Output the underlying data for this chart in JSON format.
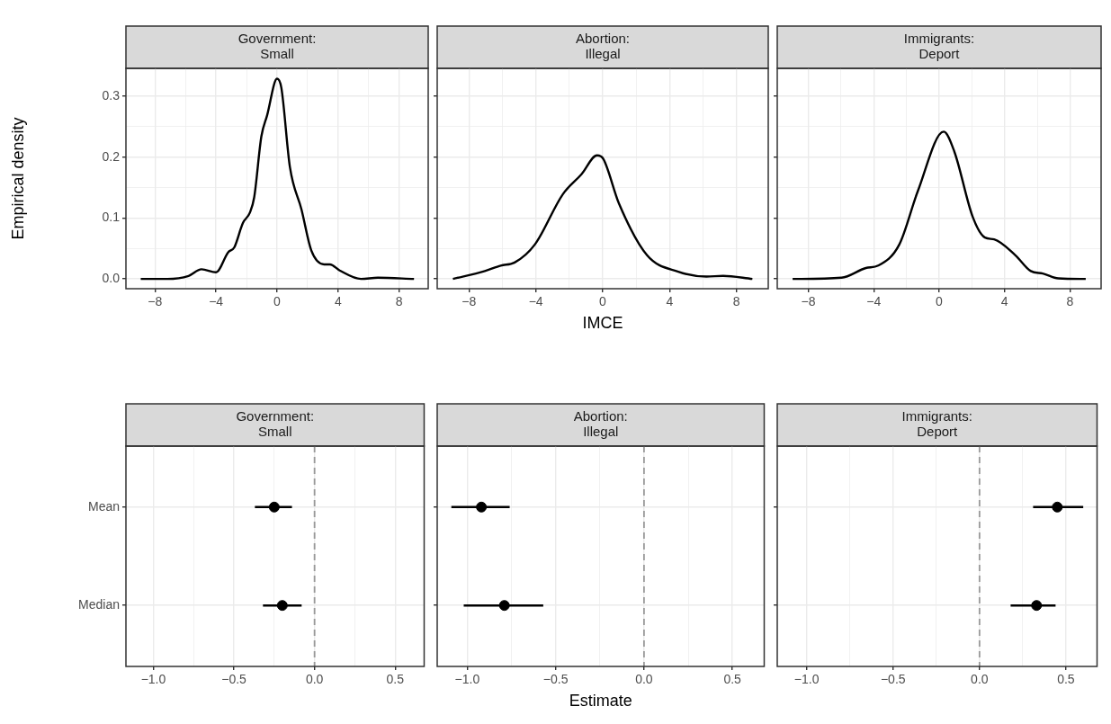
{
  "chart_data": [
    {
      "type": "line",
      "title": "Government:\nSmall",
      "ylabel": "Empirical density",
      "color": "#000000",
      "grid": true,
      "xlim": [
        -9.9,
        9.9
      ],
      "ylim": [
        -0.016,
        0.346
      ],
      "xticks": [
        {
          "value": -8,
          "label": "−8"
        },
        {
          "value": -6,
          "label": null
        },
        {
          "value": -4,
          "label": "−4"
        },
        {
          "value": -2,
          "label": null
        },
        0,
        {
          "value": 2,
          "label": null
        },
        4,
        {
          "value": 6,
          "label": null
        },
        8
      ],
      "yticks": [
        {
          "value": 0,
          "label": "0.0"
        },
        {
          "value": 0.05,
          "label": null
        },
        0.1,
        {
          "value": 0.15,
          "label": null
        },
        0.2,
        {
          "value": 0.25,
          "label": null
        },
        0.3
      ],
      "x": [
        -8.93,
        -7.2,
        -5.8,
        -4.95,
        -4.0,
        -3.2,
        -2.8,
        -2.24,
        -1.78,
        -1.5,
        -1.03,
        -0.65,
        0,
        0.28,
        0.84,
        1.6,
        2.24,
        3.08,
        3.46,
        4.1,
        5.5,
        6.6,
        8.97
      ],
      "values": [
        0,
        0,
        0.005,
        0.016,
        0.011,
        0.044,
        0.052,
        0.092,
        0.109,
        0.134,
        0.234,
        0.269,
        0.329,
        0.314,
        0.184,
        0.114,
        0.047,
        0.024,
        0.024,
        0.014,
        0,
        0.002,
        0
      ]
    },
    {
      "type": "line",
      "title": "Abortion:\nIllegal",
      "xlabel": "IMCE",
      "tick_labels": "x",
      "color": "#000000",
      "grid": true,
      "xlim": [
        -9.9,
        9.9
      ],
      "ylim": [
        -0.016,
        0.346
      ],
      "xticks": [
        {
          "value": -8,
          "label": "−8"
        },
        {
          "value": -6,
          "label": null
        },
        {
          "value": -4,
          "label": "−4"
        },
        {
          "value": -2,
          "label": null
        },
        0,
        {
          "value": 2,
          "label": null
        },
        4,
        {
          "value": 6,
          "label": null
        },
        8
      ],
      "yticks": [
        0,
        {
          "value": 0.05,
          "label": null
        },
        0.1,
        {
          "value": 0.15,
          "label": null
        },
        0.2,
        {
          "value": 0.25,
          "label": null
        },
        0.3
      ],
      "x": [
        -8.96,
        -7.05,
        -6.1,
        -5.27,
        -4.05,
        -2.39,
        -1.27,
        -0.34,
        0.04,
        0.97,
        2.65,
        4.52,
        6.2,
        7.2,
        8.95
      ],
      "values": [
        0,
        0.013,
        0.022,
        0.027,
        0.057,
        0.139,
        0.172,
        0.203,
        0.197,
        0.124,
        0.039,
        0.012,
        0.004,
        0.005,
        0
      ]
    },
    {
      "type": "line",
      "title": "Immigrants:\nDeport",
      "tick_labels": "x",
      "color": "#000000",
      "grid": true,
      "xlim": [
        -9.9,
        9.9
      ],
      "ylim": [
        -0.016,
        0.346
      ],
      "xticks": [
        {
          "value": -8,
          "label": "−8"
        },
        {
          "value": -6,
          "label": null
        },
        {
          "value": -4,
          "label": "−4"
        },
        {
          "value": -2,
          "label": null
        },
        0,
        {
          "value": 2,
          "label": null
        },
        4,
        {
          "value": 6,
          "label": null
        },
        8
      ],
      "yticks": [
        0,
        {
          "value": 0.05,
          "label": null
        },
        0.1,
        {
          "value": 0.15,
          "label": null
        },
        0.2,
        {
          "value": 0.25,
          "label": null
        },
        0.3
      ],
      "x": [
        -8.96,
        -5.97,
        -4.48,
        -3.73,
        -2.43,
        -1.31,
        0.28,
        0.93,
        2.05,
        2.8,
        3.36,
        4.66,
        5.6,
        6.34,
        7.28,
        8.96
      ],
      "values": [
        0,
        0.002,
        0.018,
        0.022,
        0.057,
        0.144,
        0.242,
        0.209,
        0.102,
        0.068,
        0.065,
        0.039,
        0.013,
        0.009,
        0.001,
        0
      ]
    },
    {
      "type": "scatter",
      "orientation": "horizontal",
      "title": "Government:\nSmall",
      "marker": "circle",
      "color": "#000000",
      "grid": true,
      "categories": [
        "Mean",
        "Median"
      ],
      "values": [
        -0.25,
        -0.2
      ],
      "errors": [
        [
          -0.37,
          -0.14
        ],
        [
          -0.32,
          -0.08
        ]
      ],
      "xlim": [
        -1.17,
        0.68
      ],
      "xticks": [
        {
          "value": -1,
          "label": "−1.0"
        },
        {
          "value": -0.75,
          "label": null
        },
        {
          "value": -0.5,
          "label": "−0.5"
        },
        {
          "value": -0.25,
          "label": null
        },
        {
          "value": 0,
          "label": "0.0"
        },
        {
          "value": 0.25,
          "label": null
        },
        0.5
      ],
      "ref_lines": [
        {
          "axis": "x",
          "value": 0,
          "color": "#999999",
          "line_style": "dashed"
        }
      ]
    },
    {
      "type": "scatter",
      "orientation": "horizontal",
      "title": "Abortion:\nIllegal",
      "xlabel": "Estimate",
      "tick_labels": "x",
      "marker": "circle",
      "color": "#000000",
      "grid": true,
      "categories": [
        null,
        null
      ],
      "values": [
        -0.92,
        -0.79
      ],
      "errors": [
        [
          -1.09,
          -0.76
        ],
        [
          -1.02,
          -0.57
        ]
      ],
      "xlim": [
        -1.17,
        0.68
      ],
      "xticks": [
        {
          "value": -1,
          "label": "−1.0"
        },
        {
          "value": -0.75,
          "label": null
        },
        {
          "value": -0.5,
          "label": "−0.5"
        },
        {
          "value": -0.25,
          "label": null
        },
        {
          "value": 0,
          "label": "0.0"
        },
        {
          "value": 0.25,
          "label": null
        },
        0.5
      ],
      "ref_lines": [
        {
          "axis": "x",
          "value": 0,
          "color": "#999999",
          "line_style": "dashed"
        }
      ]
    },
    {
      "type": "scatter",
      "orientation": "horizontal",
      "title": "Immigrants:\nDeport",
      "tick_labels": "x",
      "marker": "circle",
      "color": "#000000",
      "grid": true,
      "categories": [
        null,
        null
      ],
      "values": [
        0.45,
        0.33
      ],
      "errors": [
        [
          0.31,
          0.6
        ],
        [
          0.18,
          0.44
        ]
      ],
      "xlim": [
        -1.17,
        0.68
      ],
      "xticks": [
        {
          "value": -1,
          "label": "−1.0"
        },
        {
          "value": -0.75,
          "label": null
        },
        {
          "value": -0.5,
          "label": "−0.5"
        },
        {
          "value": -0.25,
          "label": null
        },
        {
          "value": 0,
          "label": "0.0"
        },
        {
          "value": 0.25,
          "label": null
        },
        0.5
      ],
      "ref_lines": [
        {
          "axis": "x",
          "value": 0,
          "color": "#999999",
          "line_style": "dashed"
        }
      ]
    }
  ]
}
